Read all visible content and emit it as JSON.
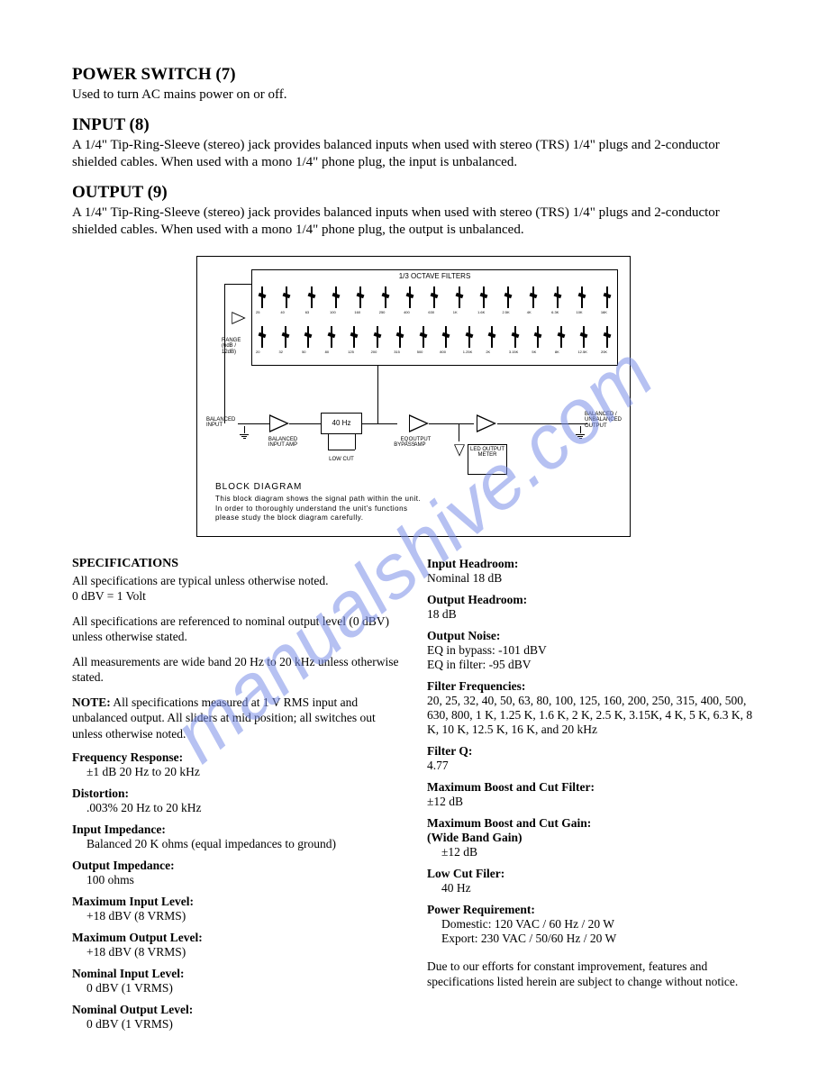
{
  "watermark": "manualshive.com",
  "sections": {
    "power_switch": {
      "title": "POWER SWITCH (7)",
      "body": "Used to turn AC mains power on or off."
    },
    "input": {
      "title": "INPUT (8)",
      "body": "A 1/4\" Tip-Ring-Sleeve (stereo) jack provides balanced inputs when used with stereo (TRS) 1/4\" plugs and 2-conductor shielded cables. When used with a mono 1/4\" phone plug, the input is unbalanced."
    },
    "output": {
      "title": "OUTPUT (9)",
      "body": "A 1/4\" Tip-Ring-Sleeve (stereo) jack provides balanced inputs when used with stereo (TRS) 1/4\" plugs and 2-conductor shielded cables. When used with a mono 1/4\" phone plug, the output is unbalanced."
    }
  },
  "diagram": {
    "filter_title": "1/3 OCTAVE FILTERS",
    "row1_labels": [
      "25",
      "40",
      "63",
      "100",
      "160",
      "250",
      "400",
      "630",
      "1K",
      "1.6K",
      "2.5K",
      "4K",
      "6.3K",
      "10K",
      "16K"
    ],
    "row2_labels": [
      "20",
      "32",
      "50",
      "80",
      "125",
      "200",
      "315",
      "500",
      "800",
      "1.25K",
      "2K",
      "3.15K",
      "5K",
      "8K",
      "12.5K",
      "20K"
    ],
    "input_label": "BALANCED INPUT",
    "input_amp_label": "BALANCED INPUT AMP",
    "box40": "40 Hz",
    "low_cut": "LOW CUT",
    "eq_bypass": "EQ BYPASS",
    "output_amp": "OUTPUT AMP",
    "output_label": "BALANCED / UNBALANCED OUTPUT",
    "led_meter": "LED OUTPUT METER",
    "range_label": "RANGE (6dB / 12dB)",
    "bd_title": "BLOCK DIAGRAM",
    "bd_line1": "This block diagram shows the signal path within the unit.",
    "bd_line2": "In order to thoroughly understand the unit's functions",
    "bd_line3": "please study the block diagram carefully."
  },
  "specs": {
    "header": "SPECIFICATIONS",
    "intro1": "All specifications are typical unless otherwise noted.",
    "intro2": "0 dBV = 1 Volt",
    "intro3": "All specifications are referenced to nominal output level (0 dBV) unless otherwise stated.",
    "intro4": "All measurements are wide band 20 Hz to 20 kHz unless otherwise stated.",
    "note_label": "NOTE:",
    "note_body": " All specifications measured at 1 V RMS input and unbalanced output. All sliders at mid position; all switches out unless otherwise noted.",
    "freq_resp_l": "Frequency Response:",
    "freq_resp_v": "±1 dB 20 Hz to 20 kHz",
    "distortion_l": "Distortion:",
    "distortion_v": ".003% 20 Hz to 20 kHz",
    "in_imp_l": "Input Impedance:",
    "in_imp_v": "Balanced 20 K ohms (equal impedances to ground)",
    "out_imp_l": "Output Impedance:",
    "out_imp_v": "100 ohms",
    "max_in_l": "Maximum Input Level:",
    "max_in_v": "+18 dBV (8 VRMS)",
    "max_out_l": "Maximum Output Level:",
    "max_out_v": "+18 dBV (8 VRMS)",
    "nom_in_l": "Nominal Input Level:",
    "nom_in_v": "0 dBV (1 VRMS)",
    "nom_out_l": "Nominal Output Level:",
    "nom_out_v": "0 dBV (1 VRMS)",
    "in_head_l": "Input Headroom:",
    "in_head_v": "Nominal 18 dB",
    "out_head_l": "Output Headroom:",
    "out_head_v": "18 dB",
    "out_noise_l": "Output Noise:",
    "out_noise_v1": "EQ in bypass: -101 dBV",
    "out_noise_v2": "EQ in filter: -95 dBV",
    "filt_freq_l": "Filter Frequencies:",
    "filt_freq_v": "20, 25, 32, 40, 50, 63, 80, 100, 125, 160, 200, 250, 315, 400, 500, 630, 800, 1 K, 1.25 K, 1.6 K, 2 K, 2.5 K, 3.15K, 4 K, 5 K, 6.3 K, 8 K, 10 K, 12.5 K, 16 K, and 20 kHz",
    "filt_q_l": "Filter Q:",
    "filt_q_v": "4.77",
    "max_bc_filt_l": "Maximum Boost and Cut Filter:",
    "max_bc_filt_v": "±12 dB",
    "max_bc_gain_l": "Maximum Boost and Cut Gain:",
    "max_bc_gain_l2": "(Wide Band Gain)",
    "max_bc_gain_v": "±12 dB",
    "low_cut_l": "Low Cut Filer:",
    "low_cut_v": "40 Hz",
    "power_req_l": "Power Requirement:",
    "power_req_v1": "Domestic: 120 VAC / 60 Hz / 20 W",
    "power_req_v2": "Export: 230 VAC / 50/60 Hz / 20 W",
    "footer": "Due to our efforts for constant improvement, features and specifications listed herein are subject to change without notice."
  }
}
